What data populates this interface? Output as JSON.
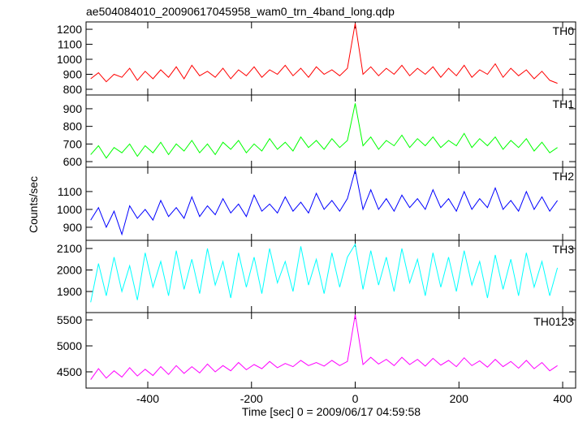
{
  "chart_data": {
    "type": "line",
    "title": "ae504084010_20090617045958_wam0_trn_4band_long.qdp",
    "y_label": "Counts/sec",
    "x_label": "Time [sec] 0 = 2009/06/17 04:59:58",
    "xlim": [
      -519,
      425
    ],
    "xticks": [
      -400,
      -200,
      0,
      200,
      400
    ],
    "x": [
      -510,
      -495,
      -480,
      -465,
      -450,
      -435,
      -420,
      -405,
      -390,
      -375,
      -360,
      -345,
      -330,
      -315,
      -300,
      -285,
      -270,
      -255,
      -240,
      -225,
      -210,
      -195,
      -180,
      -165,
      -150,
      -135,
      -120,
      -105,
      -90,
      -75,
      -60,
      -45,
      -30,
      -15,
      0,
      15,
      30,
      45,
      60,
      75,
      90,
      105,
      120,
      135,
      150,
      165,
      180,
      195,
      210,
      225,
      240,
      255,
      270,
      285,
      300,
      315,
      330,
      345,
      360,
      375,
      390
    ],
    "series": [
      {
        "name": "TH0",
        "color": "#ff0000",
        "ylim": [
          762,
          1249
        ],
        "yticks": [
          800,
          900,
          1000,
          1100,
          1200
        ],
        "values": [
          870,
          910,
          850,
          900,
          880,
          940,
          860,
          920,
          870,
          930,
          880,
          950,
          870,
          960,
          890,
          920,
          880,
          940,
          870,
          930,
          890,
          950,
          880,
          930,
          900,
          960,
          890,
          940,
          880,
          950,
          900,
          930,
          890,
          940,
          1240,
          900,
          950,
          890,
          940,
          900,
          960,
          890,
          940,
          900,
          950,
          880,
          940,
          890,
          960,
          880,
          930,
          900,
          970,
          880,
          940,
          890,
          930,
          870,
          920,
          860,
          840
        ]
      },
      {
        "name": "TH1",
        "color": "#00ff00",
        "ylim": [
          568,
          978
        ],
        "yticks": [
          600,
          700,
          800,
          900
        ],
        "values": [
          640,
          690,
          620,
          680,
          650,
          700,
          630,
          690,
          650,
          710,
          640,
          700,
          660,
          720,
          650,
          700,
          640,
          710,
          670,
          720,
          650,
          700,
          660,
          730,
          670,
          710,
          660,
          740,
          680,
          720,
          670,
          730,
          680,
          720,
          930,
          690,
          740,
          670,
          720,
          690,
          750,
          680,
          730,
          690,
          740,
          680,
          720,
          690,
          760,
          680,
          730,
          690,
          740,
          670,
          720,
          680,
          730,
          660,
          710,
          650,
          680
        ]
      },
      {
        "name": "TH2",
        "color": "#0000ff",
        "ylim": [
          827,
          1236
        ],
        "yticks": [
          900,
          1000,
          1100
        ],
        "values": [
          940,
          1010,
          900,
          990,
          860,
          1020,
          950,
          1000,
          940,
          1050,
          960,
          1010,
          950,
          1070,
          960,
          1020,
          970,
          1060,
          980,
          1030,
          960,
          1080,
          990,
          1030,
          980,
          1070,
          990,
          1040,
          980,
          1090,
          1000,
          1050,
          990,
          1060,
          1220,
          1000,
          1110,
          1000,
          1060,
          990,
          1080,
          1010,
          1060,
          1000,
          1110,
          1010,
          1060,
          990,
          1100,
          1000,
          1060,
          1010,
          1120,
          1000,
          1050,
          990,
          1100,
          1000,
          1070,
          990,
          1050
        ]
      },
      {
        "name": "TH3",
        "color": "#00ffff",
        "ylim": [
          1802,
          2138
        ],
        "yticks": [
          1900,
          2000,
          2100
        ],
        "values": [
          1850,
          2030,
          1880,
          2060,
          1900,
          2020,
          1860,
          2080,
          1920,
          2040,
          1880,
          2090,
          1910,
          2050,
          1890,
          2100,
          1930,
          2040,
          1870,
          2080,
          1920,
          2060,
          1890,
          2100,
          1940,
          2040,
          1900,
          2110,
          1930,
          2050,
          1890,
          2080,
          1920,
          2060,
          2120,
          1910,
          2090,
          1930,
          2060,
          1900,
          2100,
          1940,
          2050,
          1880,
          2080,
          1920,
          2060,
          1900,
          2090,
          1930,
          2040,
          1870,
          2070,
          1910,
          2050,
          1880,
          2080,
          1920,
          2040,
          1880,
          2010
        ]
      },
      {
        "name": "TH0123",
        "color": "#ff00ff",
        "ylim": [
          4187,
          5641
        ],
        "yticks": [
          4500,
          5000,
          5500
        ],
        "values": [
          4350,
          4560,
          4380,
          4520,
          4400,
          4580,
          4420,
          4550,
          4430,
          4600,
          4450,
          4620,
          4470,
          4600,
          4480,
          4650,
          4500,
          4620,
          4520,
          4680,
          4540,
          4640,
          4560,
          4700,
          4580,
          4660,
          4600,
          4720,
          4620,
          4680,
          4610,
          4720,
          4620,
          4700,
          5600,
          4640,
          4780,
          4650,
          4740,
          4620,
          4780,
          4640,
          4740,
          4610,
          4760,
          4630,
          4720,
          4600,
          4770,
          4620,
          4710,
          4590,
          4740,
          4600,
          4700,
          4570,
          4720,
          4560,
          4680,
          4520,
          4620
        ]
      }
    ]
  }
}
